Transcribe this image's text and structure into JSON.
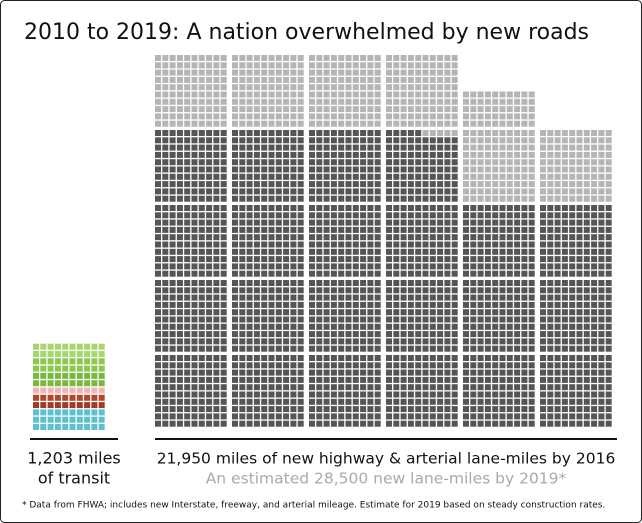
{
  "chart_data": {
    "type": "waffle",
    "title": "2010 to 2019: A nation overwhelmed by new roads",
    "footnote": "* Data from FHWA; includes new Interstate, freeway, and arterial mileage. Estimate for 2019 based on steady construction rates.",
    "series": [
      {
        "label_lines": [
          "1,203 miles",
          "of transit"
        ],
        "values": [
          1203
        ],
        "row_colors": [
          "#a6d66c",
          "#a6d66c",
          "#8cc84b",
          "#8cc84b",
          "#79b93d",
          "#79b93d",
          "#f0b5b5",
          "#b3452c",
          "#a33a22",
          "#5cc2d0",
          "#5cc2d0",
          "#5cc2d0"
        ]
      },
      {
        "label_lines": [
          "21,950 miles of new highway & arterial lane-miles by 2016",
          "An estimated 28,500 new lane-miles by 2019*"
        ],
        "values": [
          21950,
          28500
        ],
        "colors": [
          "#555555",
          "#b5b5b5"
        ]
      }
    ]
  }
}
